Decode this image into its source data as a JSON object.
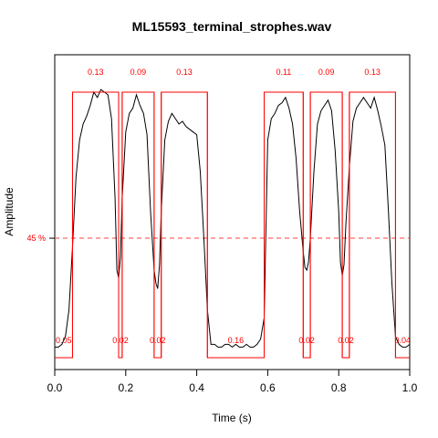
{
  "chart_data": {
    "type": "line",
    "title": "ML15593_terminal_strophes.wav",
    "xlabel": "Time (s)",
    "ylabel": "Amplitude",
    "xlim": [
      0,
      1.0
    ],
    "ylim": [
      0,
      1.05
    ],
    "x_ticks": [
      "0.0",
      "0.2",
      "0.4",
      "0.6",
      "0.8",
      "1.0"
    ],
    "x_tick_values": [
      0,
      0.2,
      0.4,
      0.6,
      0.8,
      1.0
    ],
    "threshold": {
      "value": 0.45,
      "label": "45 %"
    },
    "envelope": {
      "x": [
        0.0,
        0.01,
        0.02,
        0.03,
        0.04,
        0.05,
        0.06,
        0.07,
        0.08,
        0.09,
        0.1,
        0.11,
        0.12,
        0.13,
        0.14,
        0.15,
        0.16,
        0.17,
        0.175,
        0.18,
        0.185,
        0.19,
        0.2,
        0.21,
        0.22,
        0.23,
        0.24,
        0.25,
        0.26,
        0.27,
        0.28,
        0.285,
        0.29,
        0.295,
        0.3,
        0.31,
        0.32,
        0.33,
        0.34,
        0.35,
        0.36,
        0.37,
        0.38,
        0.39,
        0.4,
        0.41,
        0.42,
        0.43,
        0.44,
        0.45,
        0.46,
        0.47,
        0.48,
        0.49,
        0.5,
        0.51,
        0.52,
        0.53,
        0.54,
        0.55,
        0.56,
        0.57,
        0.58,
        0.59,
        0.6,
        0.61,
        0.62,
        0.63,
        0.64,
        0.65,
        0.66,
        0.67,
        0.68,
        0.69,
        0.7,
        0.705,
        0.71,
        0.715,
        0.72,
        0.73,
        0.74,
        0.75,
        0.76,
        0.77,
        0.78,
        0.79,
        0.8,
        0.805,
        0.81,
        0.815,
        0.82,
        0.83,
        0.84,
        0.85,
        0.86,
        0.87,
        0.88,
        0.89,
        0.9,
        0.91,
        0.92,
        0.93,
        0.94,
        0.95,
        0.96,
        0.97,
        0.98,
        0.99,
        1.0
      ],
      "y": [
        0.04,
        0.04,
        0.05,
        0.08,
        0.18,
        0.42,
        0.68,
        0.82,
        0.88,
        0.91,
        0.95,
        1.0,
        0.98,
        1.01,
        1.0,
        0.99,
        0.9,
        0.6,
        0.33,
        0.3,
        0.38,
        0.6,
        0.85,
        0.92,
        0.94,
        0.99,
        0.95,
        0.92,
        0.84,
        0.55,
        0.33,
        0.28,
        0.26,
        0.35,
        0.55,
        0.82,
        0.89,
        0.92,
        0.9,
        0.88,
        0.89,
        0.87,
        0.86,
        0.85,
        0.84,
        0.7,
        0.45,
        0.18,
        0.05,
        0.05,
        0.04,
        0.04,
        0.05,
        0.05,
        0.04,
        0.05,
        0.04,
        0.04,
        0.05,
        0.04,
        0.04,
        0.05,
        0.07,
        0.15,
        0.82,
        0.9,
        0.92,
        0.95,
        0.96,
        0.98,
        0.94,
        0.88,
        0.75,
        0.55,
        0.4,
        0.34,
        0.33,
        0.36,
        0.45,
        0.7,
        0.88,
        0.93,
        0.95,
        0.97,
        0.93,
        0.78,
        0.55,
        0.36,
        0.31,
        0.35,
        0.5,
        0.72,
        0.89,
        0.94,
        0.96,
        0.98,
        0.96,
        0.94,
        0.98,
        0.93,
        0.87,
        0.8,
        0.55,
        0.28,
        0.08,
        0.05,
        0.04,
        0.04,
        0.05
      ]
    },
    "segments": [
      {
        "kind": "note",
        "start": 0.05,
        "end": 0.18,
        "label": "0.13"
      },
      {
        "kind": "note",
        "start": 0.19,
        "end": 0.28,
        "label": "0.09"
      },
      {
        "kind": "note",
        "start": 0.3,
        "end": 0.43,
        "label": "0.13"
      },
      {
        "kind": "note",
        "start": 0.59,
        "end": 0.7,
        "label": "0.11"
      },
      {
        "kind": "note",
        "start": 0.72,
        "end": 0.81,
        "label": "0.09"
      },
      {
        "kind": "note",
        "start": 0.83,
        "end": 0.96,
        "label": "0.13"
      },
      {
        "kind": "gap",
        "start": 0.0,
        "end": 0.05,
        "label": "0.05"
      },
      {
        "kind": "gap",
        "start": 0.18,
        "end": 0.19,
        "label": "0.02"
      },
      {
        "kind": "gap",
        "start": 0.28,
        "end": 0.3,
        "label": "0.02"
      },
      {
        "kind": "gap",
        "start": 0.43,
        "end": 0.59,
        "label": "0.16"
      },
      {
        "kind": "gap",
        "start": 0.7,
        "end": 0.72,
        "label": "0.02"
      },
      {
        "kind": "gap",
        "start": 0.81,
        "end": 0.83,
        "label": "0.02"
      },
      {
        "kind": "gap",
        "start": 0.96,
        "end": 1.0,
        "label": "0.04"
      }
    ],
    "colors": {
      "envelope": "#000000",
      "segments": "#ff0000",
      "threshold": "#ff4040"
    },
    "grid": false
  }
}
